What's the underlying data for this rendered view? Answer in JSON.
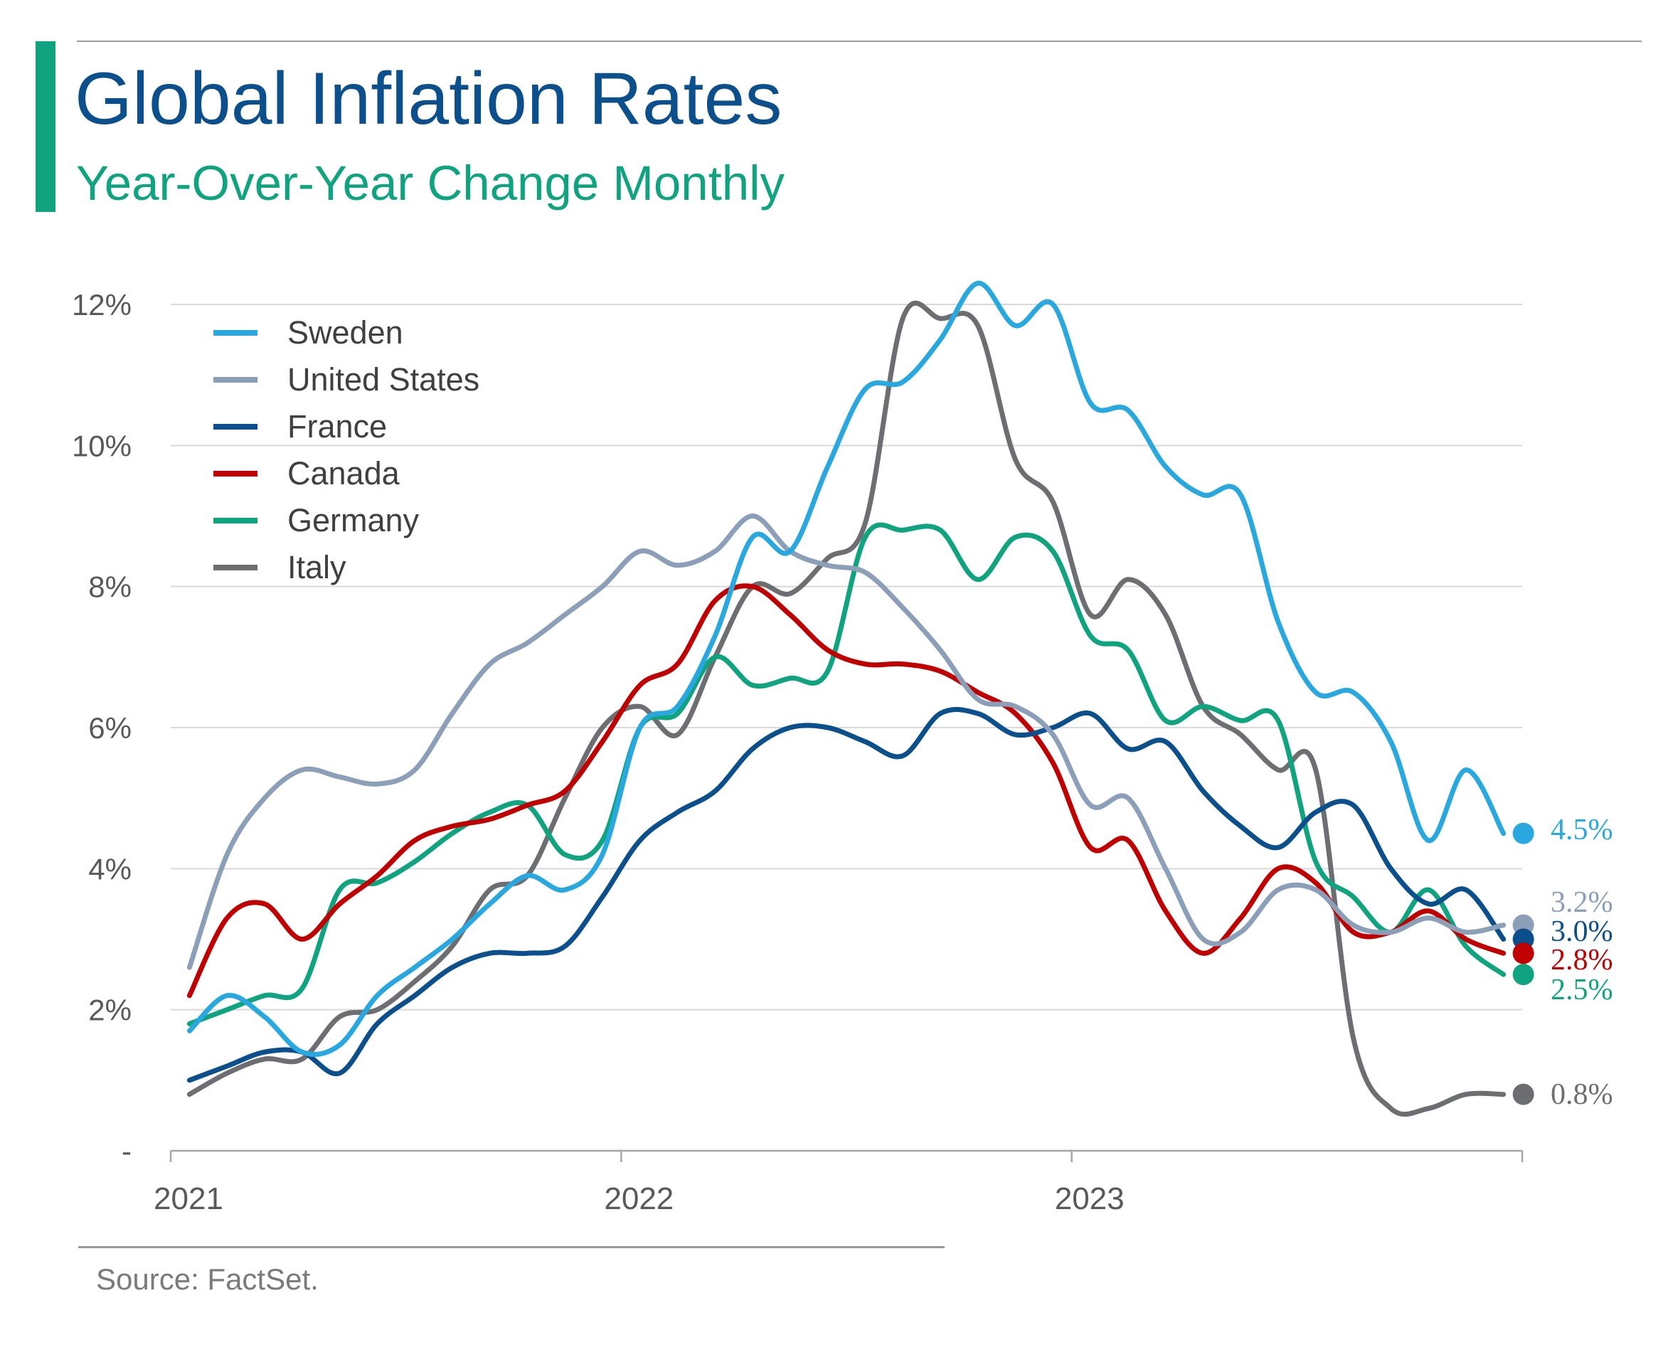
{
  "header": {
    "title": "Global Inflation Rates",
    "subtitle": "Year-Over-Year Change Monthly"
  },
  "footer": {
    "source": "Source: FactSet."
  },
  "colors": {
    "accent": "#0fa37f",
    "title": "#0b4f8c",
    "subtitle": "#0fa37f",
    "grid": "#d9d9d9",
    "axis": "#a6a6a6"
  },
  "chart_data": {
    "type": "line",
    "title": "Global Inflation Rates",
    "subtitle": "Year-Over-Year Change Monthly",
    "xlabel": "",
    "ylabel": "",
    "x_start": "2021-01",
    "x_end": "2023-12",
    "x_ticks": [
      "2021",
      "2022",
      "2023"
    ],
    "y_ticks": [
      "-",
      "2%",
      "4%",
      "6%",
      "8%",
      "10%",
      "12%"
    ],
    "ylim": [
      0,
      12
    ],
    "grid": "horizontal",
    "legend_position": "top-left",
    "x": [
      "2021-01",
      "2021-02",
      "2021-03",
      "2021-04",
      "2021-05",
      "2021-06",
      "2021-07",
      "2021-08",
      "2021-09",
      "2021-10",
      "2021-11",
      "2021-12",
      "2022-01",
      "2022-02",
      "2022-03",
      "2022-04",
      "2022-05",
      "2022-06",
      "2022-07",
      "2022-08",
      "2022-09",
      "2022-10",
      "2022-11",
      "2022-12",
      "2023-01",
      "2023-02",
      "2023-03",
      "2023-04",
      "2023-05",
      "2023-06",
      "2023-07",
      "2023-08",
      "2023-09",
      "2023-10",
      "2023-11",
      "2023-12"
    ],
    "series": [
      {
        "name": "Sweden",
        "color": "#29a8e0",
        "end_label": "4.5%",
        "values": [
          1.7,
          2.2,
          1.9,
          1.4,
          1.5,
          2.2,
          2.6,
          3.0,
          3.5,
          3.9,
          3.7,
          4.2,
          6.0,
          6.3,
          7.3,
          8.7,
          8.5,
          9.7,
          10.8,
          10.9,
          11.5,
          12.3,
          11.7,
          12.0,
          10.6,
          10.5,
          9.7,
          9.3,
          9.3,
          7.5,
          6.5,
          6.5,
          5.8,
          4.4,
          5.4,
          4.5
        ]
      },
      {
        "name": "United States",
        "color": "#8c9fb8",
        "end_label": "3.2%",
        "values": [
          2.6,
          4.2,
          5.0,
          5.4,
          5.3,
          5.2,
          5.4,
          6.2,
          6.9,
          7.2,
          7.6,
          8.0,
          8.5,
          8.3,
          8.5,
          9.0,
          8.5,
          8.3,
          8.2,
          7.7,
          7.1,
          6.4,
          6.3,
          5.9,
          4.9,
          5.0,
          4.0,
          3.0,
          3.1,
          3.7,
          3.7,
          3.2,
          3.1,
          3.3,
          3.1,
          3.2
        ]
      },
      {
        "name": "France",
        "color": "#0b4f8c",
        "end_label": "3.0%",
        "values": [
          1.0,
          1.2,
          1.4,
          1.4,
          1.1,
          1.8,
          2.2,
          2.6,
          2.8,
          2.8,
          2.9,
          3.6,
          4.4,
          4.8,
          5.1,
          5.7,
          6.0,
          6.0,
          5.8,
          5.6,
          6.2,
          6.2,
          5.9,
          6.0,
          6.2,
          5.7,
          5.8,
          5.1,
          4.6,
          4.3,
          4.8,
          4.9,
          4.0,
          3.5,
          3.7,
          3.0
        ]
      },
      {
        "name": "Canada",
        "color": "#c00000",
        "end_label": "2.8%",
        "values": [
          2.2,
          3.3,
          3.5,
          3.0,
          3.5,
          3.9,
          4.4,
          4.6,
          4.7,
          4.9,
          5.1,
          5.8,
          6.6,
          6.9,
          7.8,
          8.0,
          7.6,
          7.1,
          6.9,
          6.9,
          6.8,
          6.5,
          6.2,
          5.5,
          4.3,
          4.4,
          3.4,
          2.8,
          3.3,
          4.0,
          3.8,
          3.1,
          3.1,
          3.4,
          3.0,
          2.8
        ]
      },
      {
        "name": "Germany",
        "color": "#0fa37f",
        "end_label": "2.5%",
        "values": [
          1.8,
          2.0,
          2.2,
          2.3,
          3.7,
          3.8,
          4.1,
          4.5,
          4.8,
          4.9,
          4.2,
          4.4,
          6.0,
          6.2,
          7.0,
          6.6,
          6.7,
          6.8,
          8.7,
          8.8,
          8.8,
          8.1,
          8.7,
          8.5,
          7.3,
          7.1,
          6.1,
          6.3,
          6.1,
          6.1,
          4.1,
          3.6,
          3.1,
          3.7,
          2.9,
          2.5
        ]
      },
      {
        "name": "Italy",
        "color": "#6d6e71",
        "end_label": "0.8%",
        "values": [
          0.8,
          1.1,
          1.3,
          1.3,
          1.9,
          2.0,
          2.4,
          2.9,
          3.7,
          3.9,
          5.0,
          6.0,
          6.3,
          5.9,
          7.0,
          8.0,
          7.9,
          8.4,
          8.9,
          11.8,
          11.8,
          11.7,
          9.8,
          9.2,
          7.6,
          8.1,
          7.6,
          6.3,
          5.9,
          5.4,
          5.4,
          1.6,
          0.6,
          0.6,
          0.8,
          0.8
        ]
      }
    ]
  }
}
